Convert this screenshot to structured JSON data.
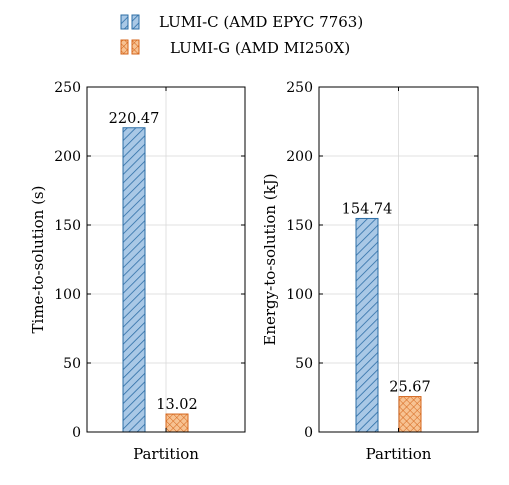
{
  "colors": {
    "series_a_fill": "#a9c8e6",
    "series_a_stroke": "#2c6ea6",
    "series_b_fill": "#f7c292",
    "series_b_stroke": "#d4651b",
    "grid": "#d9d9d9",
    "axis": "#000000"
  },
  "legend": [
    {
      "name": "LUMI-C (AMD EPYC 7763)",
      "pattern": "diagonal-hatch"
    },
    {
      "name": "LUMI-G (AMD MI250X)",
      "pattern": "crosshatch"
    }
  ],
  "chart_data": [
    {
      "type": "bar",
      "categories": [
        "Partition"
      ],
      "series": [
        {
          "name": "LUMI-C (AMD EPYC 7763)",
          "values": [
            220.47
          ]
        },
        {
          "name": "LUMI-G (AMD MI250X)",
          "values": [
            13.02
          ]
        }
      ],
      "data_labels": [
        "220.47",
        "13.02"
      ],
      "xlabel": "Partition",
      "ylabel": "Time-to-solution (s)",
      "ylim": [
        0,
        250
      ],
      "yticks": [
        0,
        50,
        100,
        150,
        200,
        250
      ],
      "grid": true
    },
    {
      "type": "bar",
      "categories": [
        "Partition"
      ],
      "series": [
        {
          "name": "LUMI-C (AMD EPYC 7763)",
          "values": [
            154.74
          ]
        },
        {
          "name": "LUMI-G (AMD MI250X)",
          "values": [
            25.67
          ]
        }
      ],
      "data_labels": [
        "154.74",
        "25.67"
      ],
      "xlabel": "Partition",
      "ylabel": "Energy-to-solution (kJ)",
      "ylim": [
        0,
        250
      ],
      "yticks": [
        0,
        50,
        100,
        150,
        200,
        250
      ],
      "grid": true
    }
  ]
}
